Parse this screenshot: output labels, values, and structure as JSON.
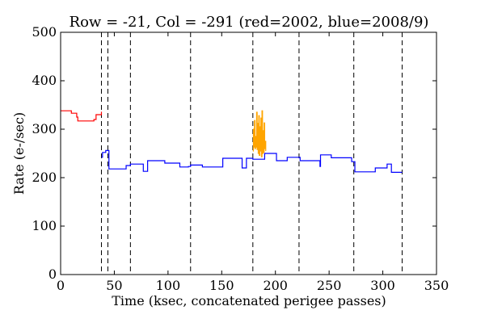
{
  "chart_data": {
    "type": "line",
    "title": "Row = -21, Col = -291 (red=2002, blue=2008/9)",
    "xlabel": "Time (ksec, concatenated perigee passes)",
    "ylabel": "Rate (e-/sec)",
    "xlim": [
      0,
      350
    ],
    "ylim": [
      0,
      500
    ],
    "xticks": [
      0,
      50,
      100,
      150,
      200,
      250,
      300,
      350
    ],
    "yticks": [
      0,
      100,
      200,
      300,
      400,
      500
    ],
    "grid": false,
    "colors": {
      "red": "#ff0000",
      "blue": "#0000ff",
      "orange": "#ffa500",
      "dashed": "#000000"
    },
    "vlines": [
      38,
      44,
      65,
      121,
      179,
      222,
      273,
      318
    ],
    "series": [
      {
        "color": "red",
        "steps": [
          [
            0,
            338
          ],
          [
            10,
            333
          ],
          [
            15,
            325
          ],
          [
            16,
            317
          ],
          [
            30,
            317
          ],
          [
            31,
            320
          ],
          [
            33,
            330
          ],
          [
            38,
            336
          ]
        ]
      },
      {
        "color": "blue",
        "steps": [
          [
            38,
            242
          ],
          [
            39,
            252
          ],
          [
            42,
            256
          ],
          [
            44,
            256
          ],
          [
            45,
            218
          ],
          [
            60,
            218
          ],
          [
            61,
            225
          ],
          [
            65,
            228
          ],
          [
            75,
            228
          ],
          [
            77,
            213
          ],
          [
            81,
            235
          ],
          [
            96,
            235
          ],
          [
            97,
            230
          ],
          [
            110,
            230
          ],
          [
            111,
            222
          ],
          [
            118,
            222
          ],
          [
            119,
            223
          ],
          [
            121,
            226
          ],
          [
            131,
            226
          ],
          [
            132,
            222
          ],
          [
            150,
            222
          ],
          [
            151,
            240
          ],
          [
            168,
            240
          ],
          [
            169,
            220
          ],
          [
            172,
            220
          ],
          [
            173,
            240
          ],
          [
            179,
            238
          ],
          [
            179.5,
            238
          ],
          [
            190,
            250
          ],
          [
            200,
            250
          ],
          [
            201,
            235
          ],
          [
            210,
            235
          ],
          [
            211,
            242
          ],
          [
            222,
            242
          ],
          [
            223,
            235
          ],
          [
            241,
            235
          ],
          [
            241.5,
            223
          ],
          [
            242,
            247
          ],
          [
            251,
            247
          ],
          [
            252,
            241
          ],
          [
            270,
            241
          ],
          [
            271,
            233
          ],
          [
            273,
            233
          ],
          [
            274,
            212
          ],
          [
            292,
            212
          ],
          [
            293,
            220
          ],
          [
            303,
            220
          ],
          [
            304,
            228
          ],
          [
            307,
            228
          ],
          [
            308,
            211
          ],
          [
            318,
            211
          ]
        ]
      },
      {
        "color": "orange",
        "steps": [
          [
            179,
            255
          ],
          [
            179.5,
            300
          ],
          [
            180,
            263
          ],
          [
            180.5,
            318
          ],
          [
            181,
            260
          ],
          [
            181.5,
            285
          ],
          [
            182,
            263
          ],
          [
            182.5,
            335
          ],
          [
            183,
            258
          ],
          [
            183.5,
            312
          ],
          [
            184,
            250
          ],
          [
            184.5,
            328
          ],
          [
            185,
            246
          ],
          [
            185.5,
            305
          ],
          [
            186,
            255
          ],
          [
            186.5,
            323
          ],
          [
            187,
            243
          ],
          [
            187.5,
            338
          ],
          [
            188,
            250
          ],
          [
            188.5,
            297
          ],
          [
            189,
            252
          ],
          [
            189.5,
            313
          ],
          [
            190,
            260
          ],
          [
            190.5,
            275
          ],
          [
            191,
            255
          ]
        ]
      }
    ]
  }
}
